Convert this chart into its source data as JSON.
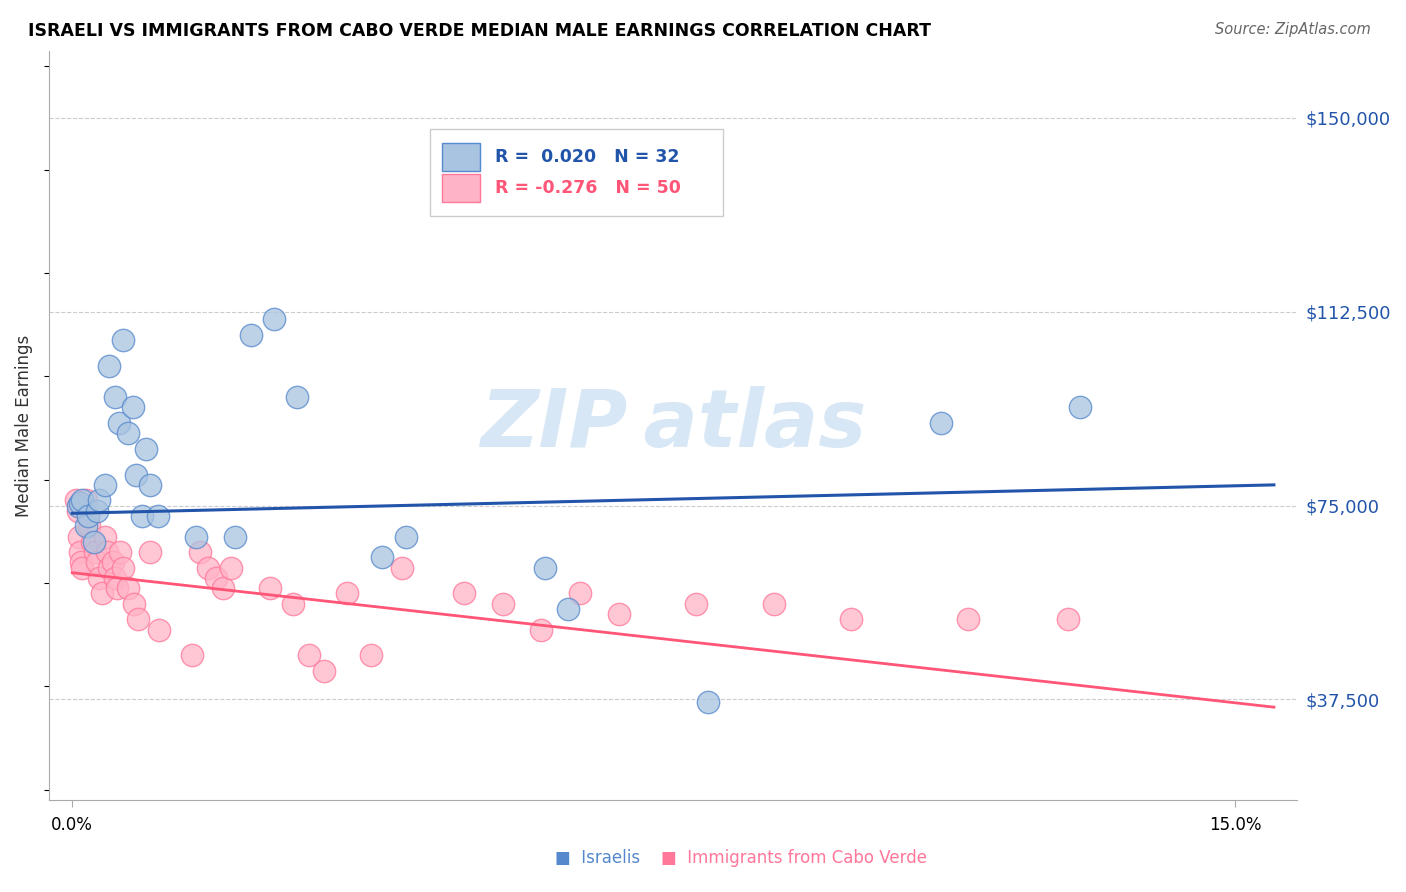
{
  "title": "ISRAELI VS IMMIGRANTS FROM CABO VERDE MEDIAN MALE EARNINGS CORRELATION CHART",
  "source": "Source: ZipAtlas.com",
  "ylabel": "Median Male Earnings",
  "ytick_labels": [
    "$37,500",
    "$75,000",
    "$112,500",
    "$150,000"
  ],
  "ytick_values": [
    37500,
    75000,
    112500,
    150000
  ],
  "ymin": 18000,
  "ymax": 163000,
  "xmin": -0.003,
  "xmax": 0.158,
  "blue_color": "#A8C4E0",
  "pink_color": "#FFB3C6",
  "blue_edge_color": "#5588CC",
  "pink_edge_color": "#FF7799",
  "blue_line_color": "#2255AA",
  "pink_line_color": "#FF5577",
  "watermark_color": "#B8D4EE",
  "israelis_x": [
    0.0008,
    0.001,
    0.0012,
    0.0018,
    0.002,
    0.0028,
    0.0032,
    0.0035,
    0.0042,
    0.0048,
    0.0055,
    0.006,
    0.0065,
    0.0072,
    0.0078,
    0.0082,
    0.009,
    0.0095,
    0.01,
    0.011,
    0.016,
    0.021,
    0.023,
    0.026,
    0.029,
    0.04,
    0.043,
    0.061,
    0.064,
    0.082,
    0.112,
    0.13
  ],
  "israelis_y": [
    75000,
    75500,
    76000,
    71000,
    73000,
    68000,
    74000,
    76000,
    79000,
    102000,
    96000,
    91000,
    107000,
    89000,
    94000,
    81000,
    73000,
    86000,
    79000,
    73000,
    69000,
    69000,
    108000,
    111000,
    96000,
    65000,
    69000,
    63000,
    55000,
    37000,
    91000,
    94000
  ],
  "caboverde_x": [
    0.0005,
    0.0007,
    0.0009,
    0.001,
    0.0011,
    0.0013,
    0.0018,
    0.002,
    0.0022,
    0.0025,
    0.003,
    0.0032,
    0.0035,
    0.0038,
    0.0042,
    0.0045,
    0.0048,
    0.0052,
    0.0055,
    0.0058,
    0.0062,
    0.0065,
    0.0072,
    0.008,
    0.0085,
    0.01,
    0.0112,
    0.0155,
    0.0165,
    0.0175,
    0.0185,
    0.0195,
    0.0205,
    0.0255,
    0.0285,
    0.0305,
    0.0325,
    0.0355,
    0.0385,
    0.0425,
    0.0505,
    0.0555,
    0.0605,
    0.0655,
    0.0705,
    0.0805,
    0.0905,
    0.1005,
    0.1155,
    0.1285
  ],
  "caboverde_y": [
    76000,
    74000,
    69000,
    66000,
    64000,
    63000,
    76000,
    73000,
    71000,
    68000,
    66000,
    64000,
    61000,
    58000,
    69000,
    66000,
    63000,
    64000,
    61000,
    59000,
    66000,
    63000,
    59000,
    56000,
    53000,
    66000,
    51000,
    46000,
    66000,
    63000,
    61000,
    59000,
    63000,
    59000,
    56000,
    46000,
    43000,
    58000,
    46000,
    63000,
    58000,
    56000,
    51000,
    58000,
    54000,
    56000,
    56000,
    53000,
    53000,
    53000
  ]
}
